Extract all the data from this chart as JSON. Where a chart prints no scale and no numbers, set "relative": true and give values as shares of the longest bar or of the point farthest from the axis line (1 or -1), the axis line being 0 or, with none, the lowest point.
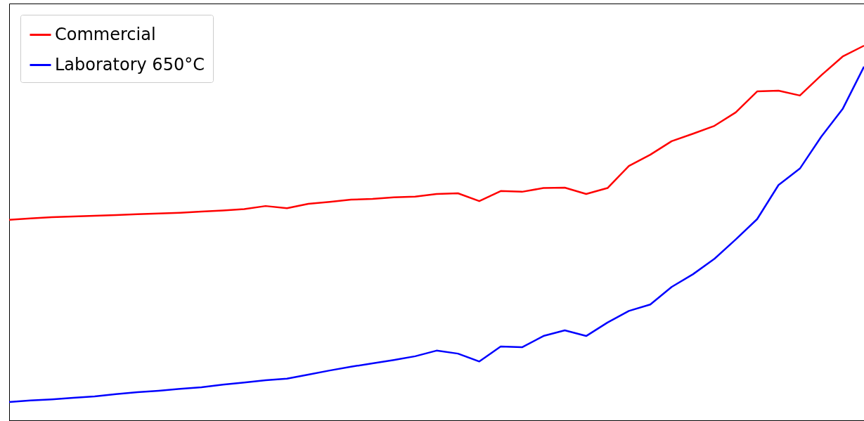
{
  "chart_data": {
    "type": "line",
    "relative": true,
    "legend": "top left",
    "grid": false,
    "categories": [
      null,
      null,
      null,
      null,
      null,
      null,
      null,
      null,
      null,
      null,
      null,
      null,
      null,
      null,
      null,
      null,
      null,
      null,
      null,
      null,
      null,
      null,
      null,
      null,
      null,
      null,
      null,
      null,
      null,
      null,
      null,
      null,
      null,
      null,
      null,
      null,
      null,
      null,
      null,
      null,
      null
    ],
    "series": [
      {
        "name": "Commercial",
        "color": "#ff0000",
        "values": [
          0.535,
          0.539,
          0.542,
          0.544,
          0.546,
          0.548,
          0.55,
          0.552,
          0.554,
          0.557,
          0.56,
          0.564,
          0.572,
          0.566,
          0.578,
          0.583,
          0.589,
          0.591,
          0.595,
          0.597,
          0.604,
          0.606,
          0.585,
          0.612,
          0.61,
          0.62,
          0.621,
          0.604,
          0.62,
          0.679,
          0.709,
          0.745,
          0.765,
          0.786,
          0.822,
          0.878,
          0.88,
          0.867,
          0.921,
          0.971,
          1.0
        ]
      },
      {
        "name": "Laboratory 650°C",
        "color": "#0000ff",
        "values": [
          0.049,
          0.053,
          0.056,
          0.06,
          0.064,
          0.07,
          0.075,
          0.079,
          0.084,
          0.088,
          0.095,
          0.101,
          0.107,
          0.111,
          0.122,
          0.133,
          0.143,
          0.152,
          0.161,
          0.171,
          0.186,
          0.178,
          0.157,
          0.197,
          0.195,
          0.225,
          0.24,
          0.225,
          0.261,
          0.292,
          0.309,
          0.356,
          0.39,
          0.431,
          0.483,
          0.537,
          0.628,
          0.672,
          0.757,
          0.831,
          0.944
        ]
      }
    ]
  }
}
